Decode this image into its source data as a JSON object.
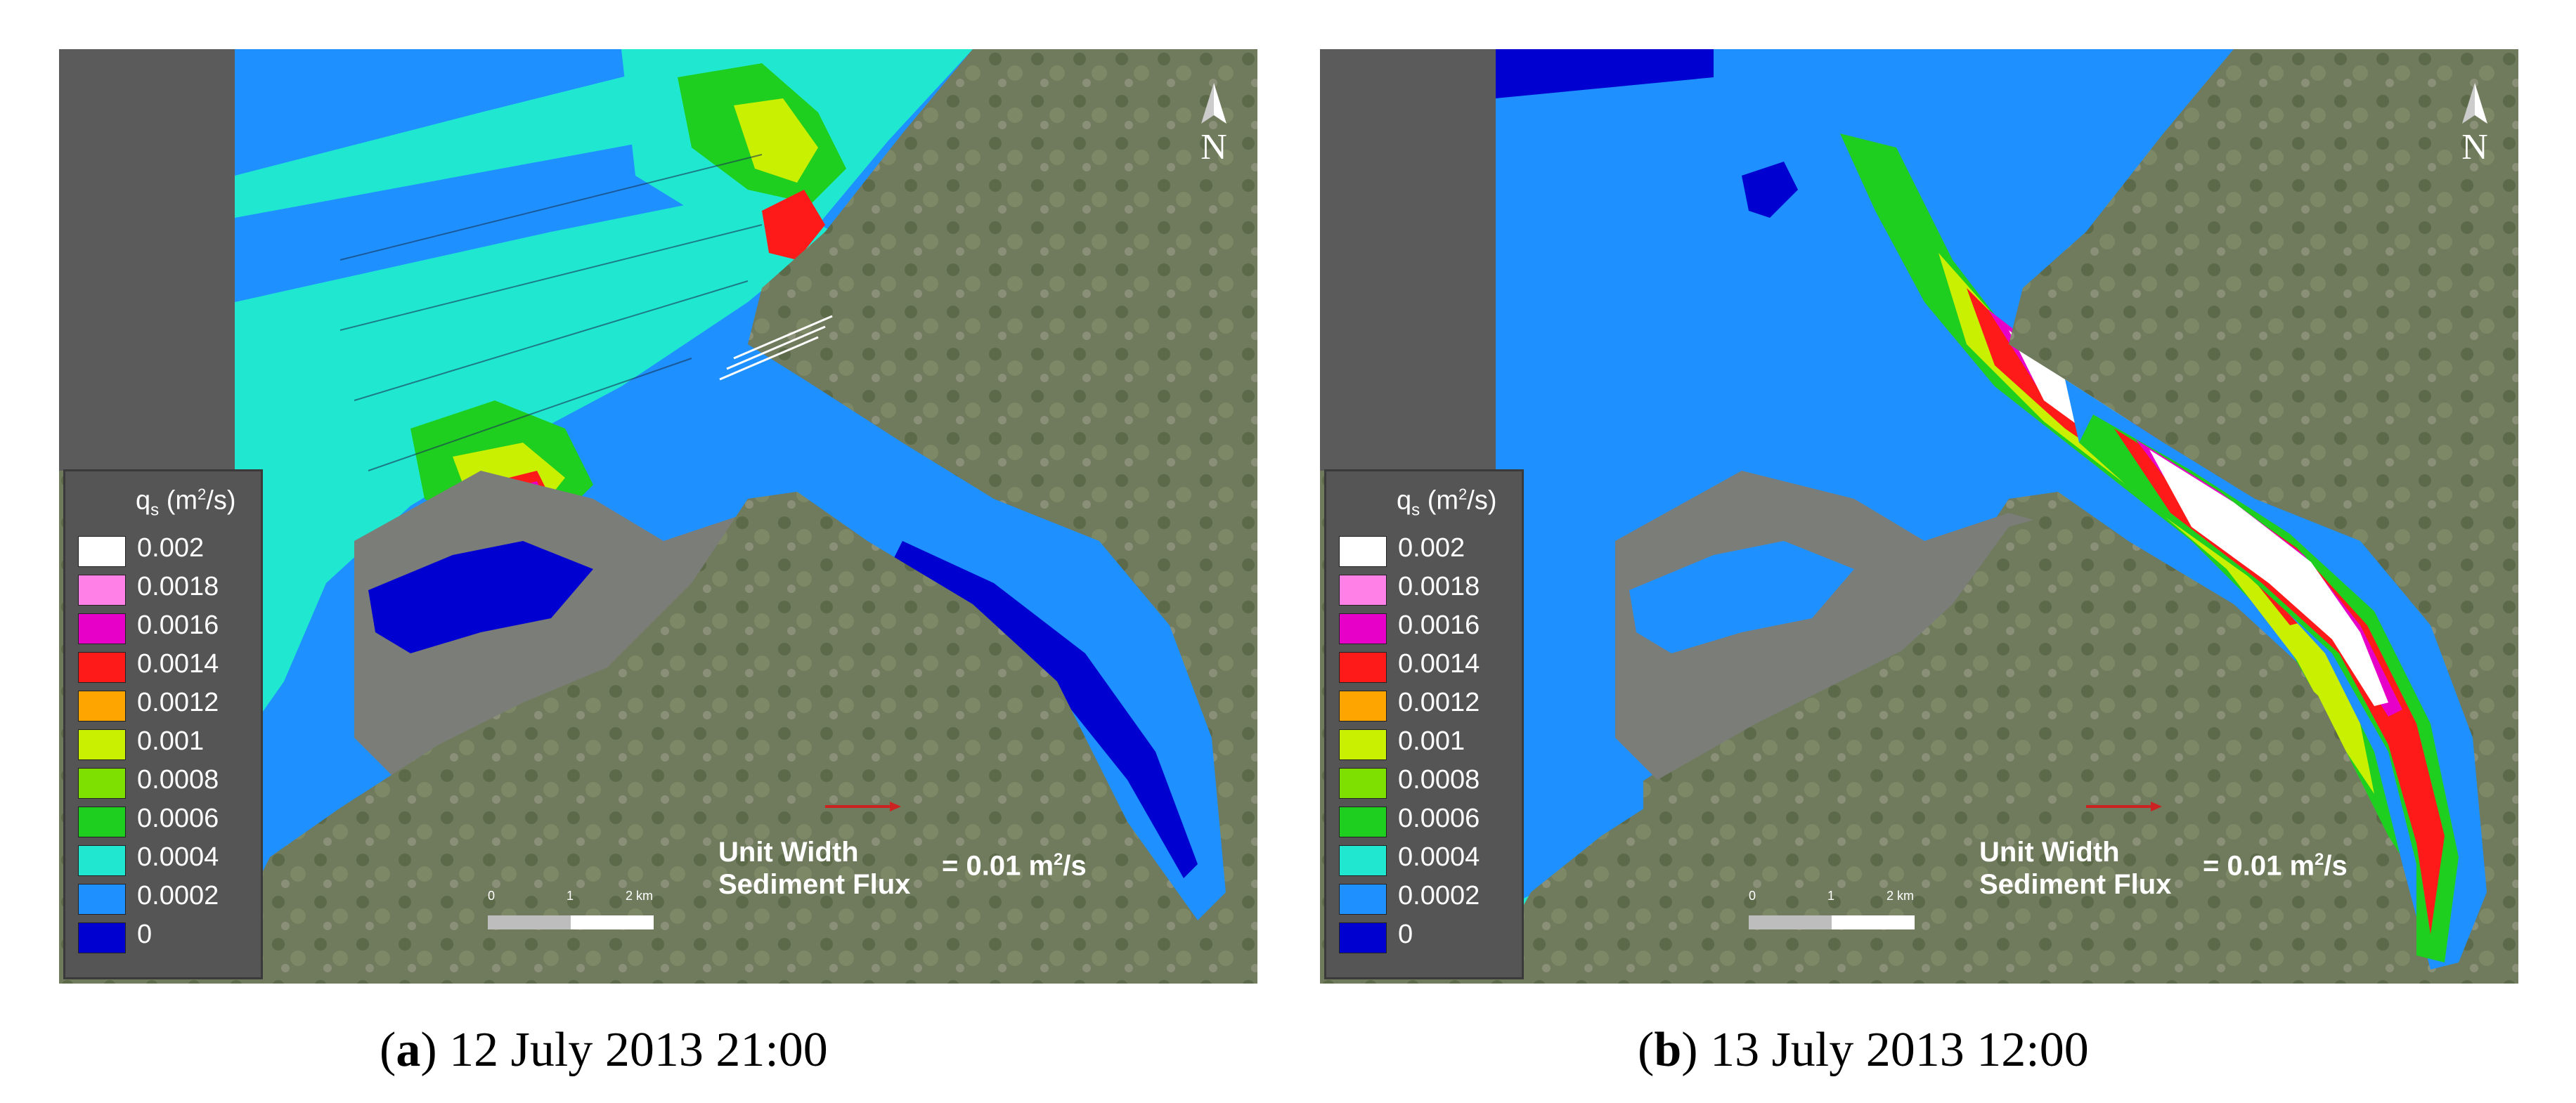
{
  "legend": {
    "title_main": "q",
    "title_sub": "s",
    "title_unit_pre": " (m",
    "title_unit_sup": "2",
    "title_unit_post": "/s)",
    "entries": [
      {
        "label": "0.002",
        "color": "#ffffff"
      },
      {
        "label": "0.0018",
        "color": "#ff80e6"
      },
      {
        "label": "0.0016",
        "color": "#e600c8"
      },
      {
        "label": "0.0014",
        "color": "#ff1a1a"
      },
      {
        "label": "0.0012",
        "color": "#ffa500"
      },
      {
        "label": "0.001",
        "color": "#c8f000"
      },
      {
        "label": "0.0008",
        "color": "#7ee000"
      },
      {
        "label": "0.0006",
        "color": "#1fcf1f"
      },
      {
        "label": "0.0004",
        "color": "#20e8d0"
      },
      {
        "label": "0.0002",
        "color": "#1e90ff"
      },
      {
        "label": "0",
        "color": "#0000d0"
      }
    ]
  },
  "north_label": "N",
  "scale": {
    "ticks": [
      "0",
      "1",
      "2 km"
    ]
  },
  "flux": {
    "label_line1": "Unit Width",
    "label_line2": "Sediment Flux",
    "value_pre": "= 0.01 m",
    "value_sup": "2",
    "value_post": "/s"
  },
  "panels": [
    {
      "caption_letter": "a",
      "caption_text": " 12 July 2013 21:00"
    },
    {
      "caption_letter": "b",
      "caption_text": " 13 July 2013 12:00"
    }
  ],
  "colors": {
    "land": "#6f7b5c",
    "water_base": "#1e90ff",
    "grey_overlay": "#5b5b5b",
    "arrow_red": "#cc2222"
  }
}
